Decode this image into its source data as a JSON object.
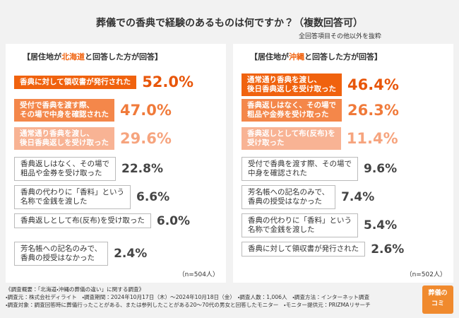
{
  "header": {
    "title": "葬儀での香典で経験のあるものは何ですか？（複数回答可）",
    "subtitle": "全回答項目その他以外を抜粋"
  },
  "panels": [
    {
      "heading": {
        "prefix": "【居住地が",
        "region": "北海道",
        "suffix": "と回答した方が回答】"
      },
      "items": [
        {
          "lines": [
            "香典に対して領収書が発行された"
          ],
          "percent": "52.0%"
        },
        {
          "lines": [
            "受付で香典を渡す際、",
            "その場で中身を確認された"
          ],
          "percent": "47.0%"
        },
        {
          "lines": [
            "通常通り香典を渡し、",
            "後日香典返しを受け取った"
          ],
          "percent": "29.6%"
        },
        {
          "lines": [
            "香典返しはなく、その場で",
            "粗品や金券を受け取った"
          ],
          "percent": "22.8%"
        },
        {
          "lines": [
            "香典の代わりに「香料」という",
            "名称で金銭を渡した"
          ],
          "percent": "6.6%"
        },
        {
          "lines": [
            "香典返しとして布(反布)を受け取った"
          ],
          "percent": "6.0%"
        },
        {
          "lines": [
            "芳名帳への記名のみで、",
            "香典の授受はなかった"
          ],
          "percent": "2.4%"
        }
      ],
      "n": "（n=504人）"
    },
    {
      "heading": {
        "prefix": "【居住地が",
        "region": "沖縄",
        "suffix": "と回答した方が回答】"
      },
      "items": [
        {
          "lines": [
            "通常通り香典を渡し、",
            "後日香典返しを受け取った"
          ],
          "percent": "46.4%"
        },
        {
          "lines": [
            "香典返しはなく、その場で",
            "粗品や金券を受け取った"
          ],
          "percent": "26.3%"
        },
        {
          "lines": [
            "香典返しとして布(反布)を",
            "受け取った"
          ],
          "percent": "11.4%"
        },
        {
          "lines": [
            "受付で香典を渡す際、その場で",
            "中身を確認された"
          ],
          "percent": "9.6%"
        },
        {
          "lines": [
            "芳名帳への記名のみで、",
            "香典の授受はなかった"
          ],
          "percent": "7.4%"
        },
        {
          "lines": [
            "香典の代わりに「香料」という",
            "名称で金銭を渡した"
          ],
          "percent": "5.4%"
        },
        {
          "lines": [
            "香典に対して領収書が発行された"
          ],
          "percent": "2.6%"
        }
      ],
      "n": "（n=502人）"
    }
  ],
  "footer": {
    "lines": [
      "《調査概要：「北海道・沖縄の葬儀の違い」に関する調査》",
      "・調査元：株式会社ディライト　・調査期間：2024年10月17日（木）〜2024年10月18日（金）　・調査人数：1,006人　・調査方法：インターネット調査",
      "・調査対象：調査回答時に葬儀行ったことがある、または参列したことがある20〜70代の男女と回答したモニター　・モニター提供元：PRIZMAリサーチ"
    ],
    "logo": [
      "葬儀の",
      "コミ"
    ]
  }
}
